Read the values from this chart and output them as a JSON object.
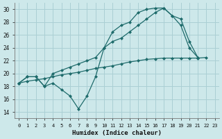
{
  "background_color": "#cde8ea",
  "grid_color": "#aacfd4",
  "line_color": "#1e6b6b",
  "xlabel": "Humidex (Indice chaleur)",
  "ylim": [
    13,
    31
  ],
  "xlim": [
    -0.5,
    23.5
  ],
  "yticks": [
    14,
    16,
    18,
    20,
    22,
    24,
    26,
    28,
    30
  ],
  "xticks": [
    0,
    1,
    2,
    3,
    4,
    5,
    6,
    7,
    8,
    9,
    10,
    11,
    12,
    13,
    14,
    15,
    16,
    17,
    18,
    19,
    20,
    21,
    22,
    23
  ],
  "line1_x": [
    0,
    1,
    2,
    3,
    4,
    5,
    6,
    7,
    8,
    9,
    10,
    11,
    12,
    13,
    14,
    15,
    16,
    17,
    18,
    19,
    20,
    21
  ],
  "line1_y": [
    18.5,
    19.5,
    19.5,
    18.0,
    18.5,
    17.5,
    16.5,
    14.5,
    16.5,
    19.5,
    24.0,
    26.5,
    27.5,
    28.0,
    29.5,
    30.0,
    30.2,
    30.2,
    29.0,
    28.5,
    25.0,
    22.5
  ],
  "line2_x": [
    0,
    1,
    2,
    3,
    4,
    5,
    6,
    7,
    8,
    9,
    10,
    11,
    12,
    13,
    14,
    15,
    16,
    17,
    18,
    19,
    20,
    21
  ],
  "line2_y": [
    18.5,
    19.5,
    19.5,
    18.0,
    20.0,
    20.5,
    21.0,
    21.5,
    22.0,
    22.5,
    24.0,
    25.0,
    25.5,
    26.5,
    27.5,
    28.5,
    29.5,
    30.2,
    29.0,
    27.5,
    24.0,
    22.5
  ],
  "line3_x": [
    0,
    1,
    2,
    3,
    4,
    5,
    6,
    7,
    8,
    9,
    10,
    11,
    12,
    13,
    14,
    15,
    16,
    17,
    18,
    19,
    20,
    21,
    22
  ],
  "line3_y": [
    18.5,
    18.8,
    19.0,
    19.2,
    19.5,
    19.8,
    20.0,
    20.2,
    20.5,
    20.8,
    21.0,
    21.2,
    21.5,
    21.8,
    22.0,
    22.2,
    22.3,
    22.4,
    22.4,
    22.4,
    22.4,
    22.4,
    22.5
  ],
  "marker": "D",
  "markersize": 2.0,
  "linewidth": 0.9
}
